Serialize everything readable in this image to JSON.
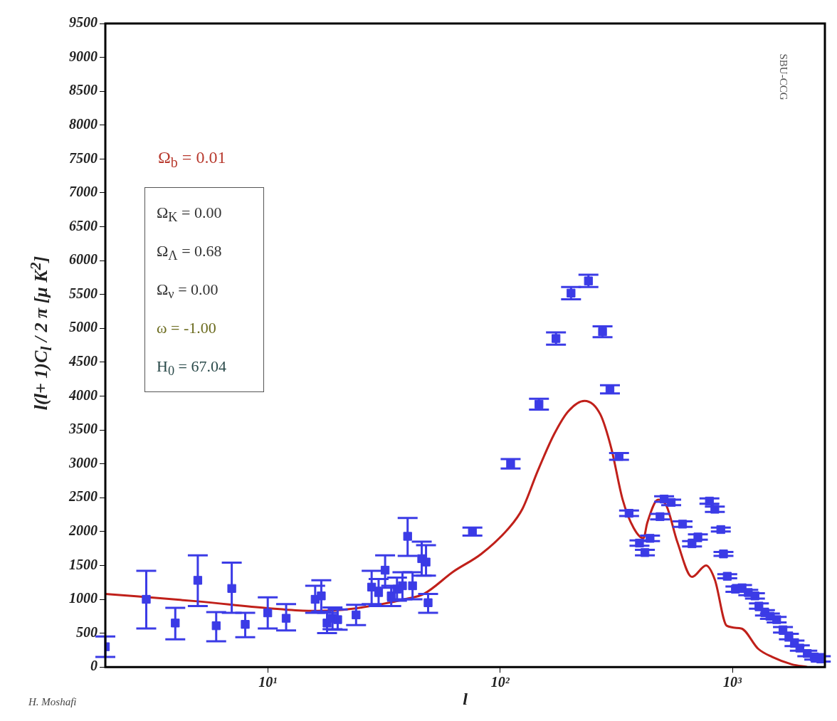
{
  "chart_data": {
    "type": "scatter",
    "xlabel": "l",
    "ylabel": "l(l+ 1)C$_{l}$ / 2 π [μ K$^{2}$]",
    "annotations": [
      "Ω$_{b}$ = 0.01",
      "Ω$_{K}$ = 0.00",
      "Ω$_{Λ}$ = 0.68",
      "Ω$_{ν}$ = 0.00",
      "ω = -1.00",
      "H$_{0}$ = 67.04",
      "SBU-CCG",
      "H. Moshafi"
    ],
    "log": "x",
    "xlim": [
      2,
      2500
    ],
    "xticks": [
      {
        "value": 10,
        "label": "10¹"
      },
      {
        "value": 100,
        "label": "10²"
      },
      {
        "value": 1000,
        "label": "10³"
      }
    ],
    "ylim": [
      0,
      9500
    ],
    "yticks": [
      0,
      500,
      1000,
      1500,
      2000,
      2500,
      3000,
      3500,
      4000,
      4500,
      5000,
      5500,
      6000,
      6500,
      7000,
      7500,
      8000,
      8500,
      9000,
      9500
    ],
    "grid": false,
    "legend": false,
    "series": [
      {
        "marker": "square",
        "color": "#3b3be6",
        "x": [
          2,
          3,
          4,
          5,
          6,
          7,
          8,
          10,
          12,
          16,
          17,
          18,
          19,
          20,
          24,
          28,
          30,
          32,
          34,
          36,
          38,
          40,
          42,
          46,
          48,
          49,
          76,
          111,
          147,
          174,
          202,
          240,
          276,
          297,
          325,
          359,
          398,
          420,
          442,
          488,
          508,
          545,
          610,
          670,
          710,
          796,
          840,
          891,
          915,
          950,
          1030,
          1100,
          1170,
          1250,
          1300,
          1380,
          1450,
          1550,
          1650,
          1750,
          1850,
          1950,
          2100,
          2250,
          2400
        ],
        "values": [
          300,
          1000,
          650,
          1280,
          610,
          1160,
          630,
          800,
          720,
          1000,
          1050,
          650,
          720,
          700,
          770,
          1180,
          1100,
          1430,
          1050,
          1150,
          1200,
          1930,
          1200,
          1600,
          1550,
          950,
          2000,
          3000,
          3880,
          4850,
          5520,
          5700,
          4950,
          4100,
          3110,
          2270,
          1830,
          1690,
          1900,
          2220,
          2480,
          2430,
          2110,
          1820,
          1920,
          2450,
          2330,
          2030,
          1670,
          1340,
          1150,
          1170,
          1100,
          1050,
          900,
          800,
          750,
          700,
          550,
          450,
          350,
          280,
          200,
          150,
          120
        ],
        "errors": [
          150,
          [
            570,
            1420
          ],
          [
            410,
            875
          ],
          [
            900,
            1650
          ],
          [
            380,
            810
          ],
          [
            800,
            1540
          ],
          [
            440,
            800
          ],
          [
            570,
            1030
          ],
          [
            540,
            930
          ],
          [
            800,
            1200
          ],
          [
            820,
            1280
          ],
          [
            500,
            800
          ],
          [
            560,
            880
          ],
          [
            550,
            850
          ],
          [
            620,
            920
          ],
          [
            930,
            1420
          ],
          [
            900,
            1300
          ],
          [
            1170,
            1650
          ],
          [
            900,
            1200
          ],
          [
            980,
            1320
          ],
          [
            1000,
            1400
          ],
          [
            1640,
            2200
          ],
          [
            1000,
            1400
          ],
          [
            1350,
            1850
          ],
          [
            1350,
            1800
          ],
          [
            800,
            1080
          ],
          60,
          70,
          80,
          90,
          90,
          90,
          80,
          60,
          50,
          40,
          40,
          40,
          40,
          40,
          40,
          40,
          40,
          40,
          40,
          40,
          40,
          30,
          30,
          30,
          40,
          40,
          40,
          40,
          40,
          40,
          40,
          40,
          40,
          40,
          40,
          40,
          40,
          40,
          40
        ]
      },
      {
        "type": "line",
        "color": "#c0201a",
        "x": [
          2,
          5,
          10,
          15,
          20,
          30,
          40,
          47,
          63,
          83,
          109,
          125,
          145,
          171,
          197,
          231,
          270,
          301,
          337,
          376,
          414,
          430,
          479,
          520,
          580,
          670,
          770,
          840,
          945,
          1090,
          1290,
          1480,
          1800,
          2100
        ],
        "values": [
          1080,
          970,
          870,
          830,
          840,
          920,
          1010,
          1080,
          1410,
          1670,
          2050,
          2340,
          2890,
          3440,
          3780,
          3930,
          3730,
          3230,
          2470,
          2050,
          1900,
          2130,
          2470,
          2380,
          1840,
          1330,
          1500,
          1290,
          610,
          570,
          270,
          150,
          40,
          0
        ]
      }
    ]
  }
}
